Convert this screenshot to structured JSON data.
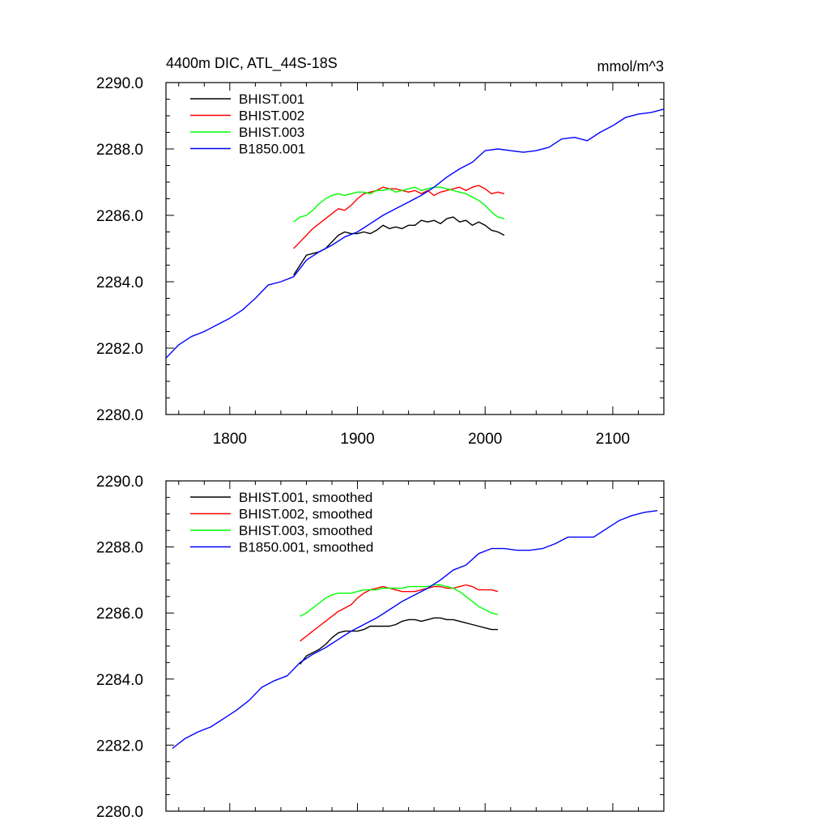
{
  "chart_data": [
    {
      "type": "line",
      "title": "4400m DIC, ATL_44S-18S",
      "units": "mmol/m^3",
      "xlabel": "",
      "ylabel": "",
      "xlim": [
        1750,
        2140
      ],
      "ylim": [
        2280.0,
        2290.0
      ],
      "xticks": [
        1800,
        1900,
        2000,
        2100
      ],
      "xtick_labels": [
        "1800",
        "1900",
        "2000",
        "2100"
      ],
      "yticks": [
        2280.0,
        2282.0,
        2284.0,
        2286.0,
        2288.0,
        2290.0
      ],
      "ytick_labels": [
        "2280.0",
        "2282.0",
        "2284.0",
        "2286.0",
        "2288.0",
        "2290.0"
      ],
      "grid": false,
      "legend_position": "top-left",
      "series": [
        {
          "name": "BHIST.001",
          "color": "#000000",
          "x": [
            1850,
            1855,
            1860,
            1865,
            1870,
            1875,
            1880,
            1885,
            1890,
            1895,
            1900,
            1905,
            1910,
            1915,
            1920,
            1925,
            1930,
            1935,
            1940,
            1945,
            1950,
            1955,
            1960,
            1965,
            1970,
            1975,
            1980,
            1985,
            1990,
            1995,
            2000,
            2005,
            2010,
            2015
          ],
          "values": [
            2284.2,
            2284.5,
            2284.8,
            2284.85,
            2284.9,
            2285.0,
            2285.2,
            2285.4,
            2285.5,
            2285.45,
            2285.45,
            2285.5,
            2285.45,
            2285.55,
            2285.7,
            2285.6,
            2285.65,
            2285.6,
            2285.7,
            2285.7,
            2285.85,
            2285.8,
            2285.85,
            2285.75,
            2285.9,
            2285.95,
            2285.8,
            2285.85,
            2285.7,
            2285.8,
            2285.7,
            2285.55,
            2285.5,
            2285.4
          ]
        },
        {
          "name": "BHIST.002",
          "color": "#ff0000",
          "x": [
            1850,
            1855,
            1860,
            1865,
            1870,
            1875,
            1880,
            1885,
            1890,
            1895,
            1900,
            1905,
            1910,
            1915,
            1920,
            1925,
            1930,
            1935,
            1940,
            1945,
            1950,
            1955,
            1960,
            1965,
            1970,
            1975,
            1980,
            1985,
            1990,
            1995,
            2000,
            2005,
            2010,
            2015
          ],
          "values": [
            2285.0,
            2285.2,
            2285.4,
            2285.6,
            2285.75,
            2285.9,
            2286.05,
            2286.2,
            2286.15,
            2286.3,
            2286.5,
            2286.65,
            2286.7,
            2286.75,
            2286.85,
            2286.8,
            2286.8,
            2286.75,
            2286.7,
            2286.75,
            2286.65,
            2286.75,
            2286.6,
            2286.7,
            2286.75,
            2286.8,
            2286.85,
            2286.75,
            2286.85,
            2286.9,
            2286.8,
            2286.65,
            2286.7,
            2286.65
          ]
        },
        {
          "name": "BHIST.003",
          "color": "#00ff00",
          "x": [
            1850,
            1855,
            1860,
            1865,
            1870,
            1875,
            1880,
            1885,
            1890,
            1895,
            1900,
            1905,
            1910,
            1915,
            1920,
            1925,
            1930,
            1935,
            1940,
            1945,
            1950,
            1955,
            1960,
            1965,
            1970,
            1975,
            1980,
            1985,
            1990,
            1995,
            2000,
            2005,
            2010,
            2015
          ],
          "values": [
            2285.8,
            2285.95,
            2286.0,
            2286.15,
            2286.35,
            2286.5,
            2286.6,
            2286.65,
            2286.6,
            2286.65,
            2286.7,
            2286.7,
            2286.65,
            2286.75,
            2286.75,
            2286.8,
            2286.7,
            2286.75,
            2286.8,
            2286.85,
            2286.75,
            2286.8,
            2286.85,
            2286.85,
            2286.8,
            2286.75,
            2286.7,
            2286.65,
            2286.55,
            2286.45,
            2286.3,
            2286.1,
            2285.95,
            2285.9
          ]
        },
        {
          "name": "B1850.001",
          "color": "#0000ff",
          "x": [
            1750,
            1760,
            1770,
            1780,
            1790,
            1800,
            1810,
            1820,
            1830,
            1840,
            1850,
            1860,
            1870,
            1880,
            1890,
            1900,
            1910,
            1920,
            1930,
            1940,
            1950,
            1960,
            1970,
            1980,
            1990,
            2000,
            2010,
            2020,
            2030,
            2040,
            2050,
            2060,
            2070,
            2080,
            2090,
            2100,
            2110,
            2120,
            2130,
            2140
          ],
          "values": [
            2281.7,
            2282.1,
            2282.35,
            2282.5,
            2282.7,
            2282.9,
            2283.15,
            2283.5,
            2283.9,
            2284.0,
            2284.15,
            2284.65,
            2284.9,
            2285.1,
            2285.35,
            2285.5,
            2285.75,
            2286.0,
            2286.2,
            2286.4,
            2286.6,
            2286.85,
            2287.15,
            2287.4,
            2287.6,
            2287.95,
            2288.0,
            2287.95,
            2287.9,
            2287.95,
            2288.05,
            2288.3,
            2288.35,
            2288.25,
            2288.5,
            2288.7,
            2288.95,
            2289.05,
            2289.1,
            2289.2
          ]
        }
      ]
    },
    {
      "type": "line",
      "title": "",
      "xlabel": "",
      "ylabel": "",
      "xlim": [
        1750,
        2140
      ],
      "ylim": [
        2280.0,
        2290.0
      ],
      "xticks": [
        1800,
        1900,
        2000,
        2100
      ],
      "xtick_labels": [],
      "yticks": [
        2280.0,
        2282.0,
        2284.0,
        2286.0,
        2288.0,
        2290.0
      ],
      "ytick_labels": [
        "2280.0",
        "2282.0",
        "2284.0",
        "2286.0",
        "2288.0",
        "2290.0"
      ],
      "grid": false,
      "legend_position": "top-left",
      "series": [
        {
          "name": "BHIST.001, smoothed",
          "color": "#000000",
          "x": [
            1855,
            1860,
            1865,
            1870,
            1875,
            1880,
            1885,
            1890,
            1895,
            1900,
            1905,
            1910,
            1915,
            1920,
            1925,
            1930,
            1935,
            1940,
            1945,
            1950,
            1955,
            1960,
            1965,
            1970,
            1975,
            1980,
            1985,
            1990,
            1995,
            2000,
            2005,
            2010
          ],
          "values": [
            2284.45,
            2284.7,
            2284.8,
            2284.9,
            2285.05,
            2285.25,
            2285.4,
            2285.45,
            2285.45,
            2285.45,
            2285.5,
            2285.6,
            2285.6,
            2285.6,
            2285.6,
            2285.65,
            2285.75,
            2285.8,
            2285.8,
            2285.75,
            2285.8,
            2285.85,
            2285.85,
            2285.8,
            2285.8,
            2285.75,
            2285.7,
            2285.65,
            2285.6,
            2285.55,
            2285.5,
            2285.5
          ]
        },
        {
          "name": "BHIST.002, smoothed",
          "color": "#ff0000",
          "x": [
            1855,
            1860,
            1865,
            1870,
            1875,
            1880,
            1885,
            1890,
            1895,
            1900,
            1905,
            1910,
            1915,
            1920,
            1925,
            1930,
            1935,
            1940,
            1945,
            1950,
            1955,
            1960,
            1965,
            1970,
            1975,
            1980,
            1985,
            1990,
            1995,
            2000,
            2005,
            2010
          ],
          "values": [
            2285.15,
            2285.3,
            2285.45,
            2285.6,
            2285.75,
            2285.9,
            2286.05,
            2286.15,
            2286.25,
            2286.45,
            2286.6,
            2286.7,
            2286.75,
            2286.8,
            2286.75,
            2286.7,
            2286.65,
            2286.65,
            2286.65,
            2286.7,
            2286.75,
            2286.8,
            2286.8,
            2286.75,
            2286.75,
            2286.8,
            2286.85,
            2286.8,
            2286.7,
            2286.7,
            2286.7,
            2286.65
          ]
        },
        {
          "name": "BHIST.003, smoothed",
          "color": "#00ff00",
          "x": [
            1855,
            1860,
            1865,
            1870,
            1875,
            1880,
            1885,
            1890,
            1895,
            1900,
            1905,
            1910,
            1915,
            1920,
            1925,
            1930,
            1935,
            1940,
            1945,
            1950,
            1955,
            1960,
            1965,
            1970,
            1975,
            1980,
            1985,
            1990,
            1995,
            2000,
            2005,
            2010
          ],
          "values": [
            2285.9,
            2286.0,
            2286.15,
            2286.3,
            2286.45,
            2286.55,
            2286.6,
            2286.6,
            2286.6,
            2286.65,
            2286.7,
            2286.7,
            2286.7,
            2286.75,
            2286.75,
            2286.75,
            2286.75,
            2286.8,
            2286.8,
            2286.8,
            2286.8,
            2286.85,
            2286.85,
            2286.8,
            2286.75,
            2286.65,
            2286.5,
            2286.35,
            2286.2,
            2286.1,
            2286.0,
            2285.95
          ]
        },
        {
          "name": "B1850.001, smoothed",
          "color": "#0000ff",
          "x": [
            1755,
            1765,
            1775,
            1785,
            1795,
            1805,
            1815,
            1825,
            1835,
            1845,
            1855,
            1865,
            1875,
            1885,
            1895,
            1905,
            1915,
            1925,
            1935,
            1945,
            1955,
            1965,
            1975,
            1985,
            1995,
            2005,
            2015,
            2025,
            2035,
            2045,
            2055,
            2065,
            2075,
            2085,
            2095,
            2105,
            2115,
            2125,
            2135
          ],
          "values": [
            2281.9,
            2282.2,
            2282.4,
            2282.55,
            2282.8,
            2283.05,
            2283.35,
            2283.75,
            2283.95,
            2284.1,
            2284.5,
            2284.75,
            2284.95,
            2285.2,
            2285.45,
            2285.65,
            2285.85,
            2286.1,
            2286.35,
            2286.55,
            2286.75,
            2287.0,
            2287.3,
            2287.45,
            2287.8,
            2287.95,
            2287.95,
            2287.9,
            2287.9,
            2287.95,
            2288.1,
            2288.3,
            2288.3,
            2288.3,
            2288.55,
            2288.8,
            2288.95,
            2289.05,
            2289.1
          ]
        }
      ]
    }
  ]
}
